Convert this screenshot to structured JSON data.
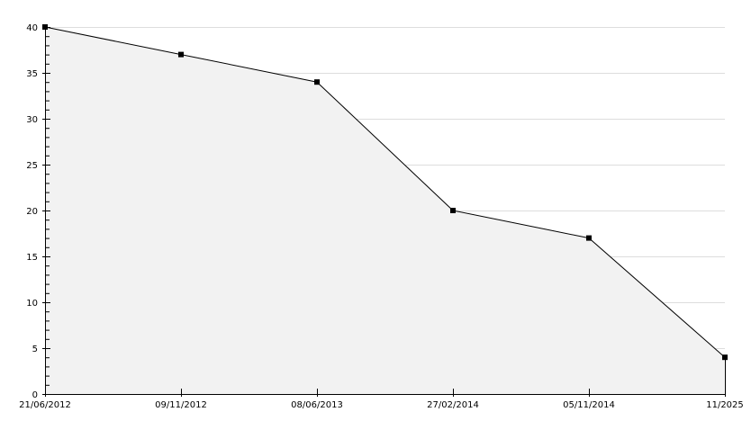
{
  "chart_data": {
    "type": "area",
    "title": "",
    "xlabel": "",
    "ylabel": "",
    "categories": [
      "21/06/2012",
      "09/11/2012",
      "08/06/2013",
      "27/02/2014",
      "05/11/2014",
      "11/2025"
    ],
    "values": [
      40,
      37,
      34,
      20,
      17,
      4
    ],
    "ylim": [
      0,
      40
    ],
    "yticks": [
      0,
      5,
      10,
      15,
      20,
      25,
      30,
      35,
      40
    ],
    "grid": true,
    "colors": {
      "fill": "#f2f2f2",
      "line": "#000000",
      "grid": "#dddddd",
      "marker": "#000000"
    }
  }
}
